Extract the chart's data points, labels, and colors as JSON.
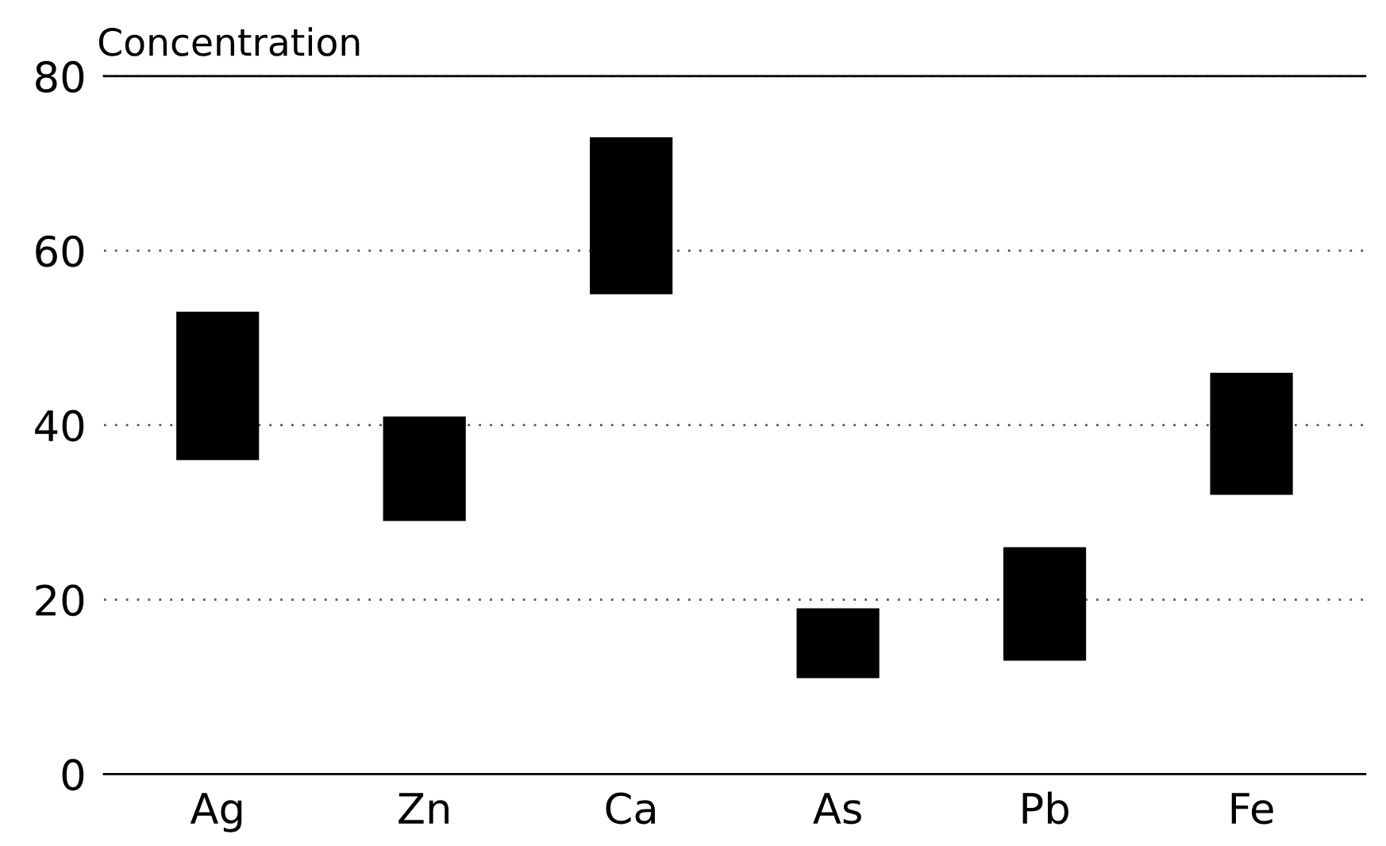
{
  "chart_data": {
    "type": "bar",
    "ylabel": "Concentration",
    "categories": [
      "Ag",
      "Zn",
      "Ca",
      "As",
      "Pb",
      "Fe"
    ],
    "base": [
      36,
      29,
      55,
      11,
      13,
      32
    ],
    "values": [
      17,
      12,
      18,
      8,
      13,
      14
    ],
    "color": "#000000",
    "ylim": [
      0,
      80
    ],
    "yticks": [
      0,
      20,
      40,
      60,
      80
    ],
    "grid": "y"
  }
}
